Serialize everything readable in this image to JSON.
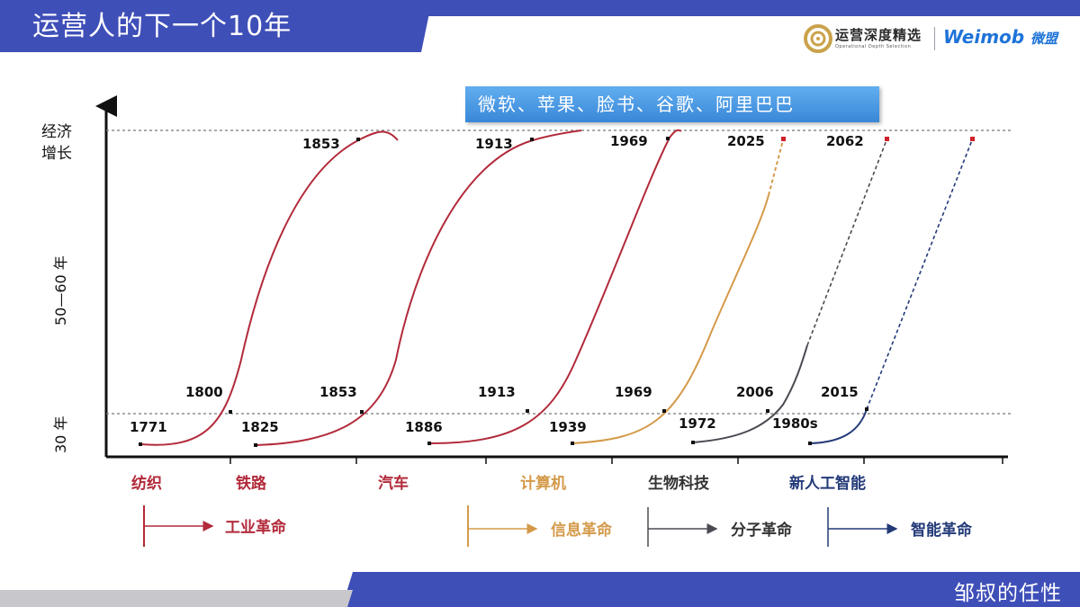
{
  "header": {
    "title": "运营人的下一个10年",
    "logo_cn": "运营深度精选",
    "logo_sub": "Operational Depth Selection",
    "logo_en": "Weimob",
    "logo_en_cn": "微盟"
  },
  "footer": {
    "author": "邹叔的任性"
  },
  "diagram": {
    "companies": "微软、苹果、脸书、谷歌、阿里巴巴",
    "y_axis": {
      "top_label_line1": "经济",
      "top_label_line2": "增长",
      "mid_label": "50—60 年",
      "low_label": "30 年"
    },
    "top_years": [
      "1853",
      "1913",
      "1969",
      "2025",
      "2062"
    ],
    "mid_years": [
      "1800",
      "1853",
      "1913",
      "1969",
      "2006",
      "2015"
    ],
    "start_years": [
      "1771",
      "1825",
      "1886",
      "1939",
      "1972",
      "1980s"
    ],
    "industries": [
      "纺织",
      "铁路",
      "汽车",
      "计算机",
      "生物科技",
      "新人工智能"
    ],
    "revolutions": [
      "工业革命",
      "信息革命",
      "分子革命",
      "智能革命"
    ],
    "colors": {
      "industrial": "#b22a3a",
      "information": "#d49a4a",
      "molecular": "#4a4a52",
      "intelligent": "#233a78",
      "header_blue": "#3f4fb8"
    }
  }
}
